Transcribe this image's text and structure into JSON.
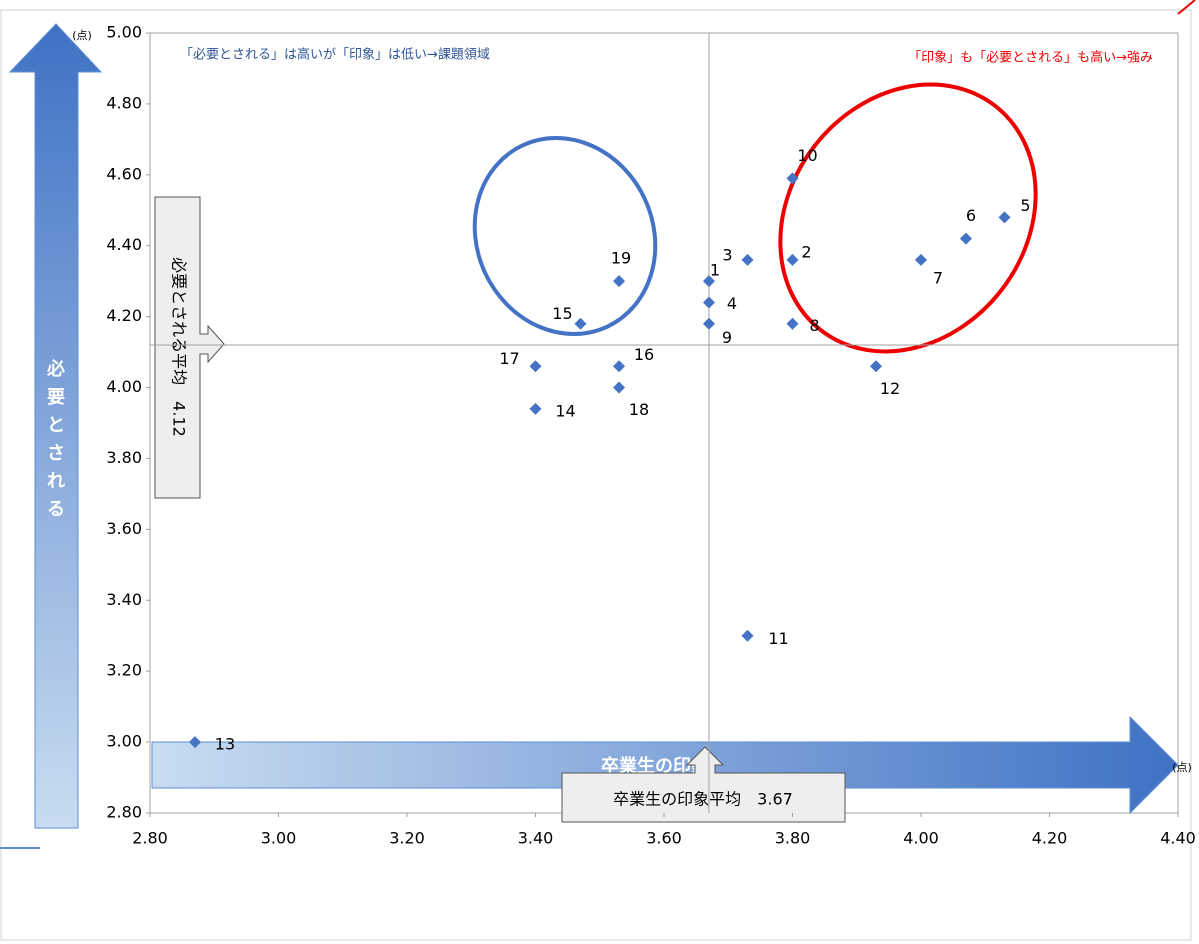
{
  "chart_data": {
    "type": "scatter",
    "x_label": "卒業生の印象",
    "y_label": "必要とされる",
    "x_unit": "(点)",
    "y_unit": "(点)",
    "annotations": [
      "「必要とされる」は高いが「印象」は低い→課題領域",
      "「印象」も「必要とされる」も高い→強み"
    ],
    "x_mean": 3.67,
    "x_mean_label": "卒業生の印象平均　3.67",
    "y_mean": 4.12,
    "y_mean_label": "必要とされる平均　4.12",
    "series": [
      {
        "color": "#4472c4",
        "labels": [
          "1",
          "2",
          "3",
          "4",
          "5",
          "6",
          "7",
          "8",
          "9",
          "10",
          "11",
          "12",
          "13",
          "14",
          "15",
          "16",
          "17",
          "18",
          "19"
        ],
        "x": [
          3.67,
          3.8,
          3.73,
          3.67,
          4.13,
          4.07,
          4.0,
          3.8,
          3.67,
          3.8,
          3.73,
          3.93,
          2.87,
          3.4,
          3.47,
          3.53,
          3.4,
          3.53,
          3.53
        ],
        "values": [
          4.3,
          4.36,
          4.36,
          4.24,
          4.48,
          4.42,
          4.36,
          4.18,
          4.18,
          4.59,
          3.3,
          4.06,
          3.0,
          3.94,
          4.18,
          4.06,
          4.06,
          4.0,
          4.3
        ]
      }
    ],
    "xlim": [
      2.8,
      4.4
    ],
    "ylim": [
      2.8,
      5.0
    ],
    "xticks": [
      {
        "value": 2.8,
        "label": "2.80"
      },
      {
        "value": 3.0,
        "label": "3.00"
      },
      {
        "value": 3.2,
        "label": "3.20"
      },
      {
        "value": 3.4,
        "label": "3.40"
      },
      {
        "value": 3.6,
        "label": "3.60"
      },
      {
        "value": 3.8,
        "label": "3.80"
      },
      {
        "value": 4.0,
        "label": "4.00"
      },
      {
        "value": 4.2,
        "label": "4.20"
      },
      {
        "value": 4.4,
        "label": "4.40"
      }
    ],
    "yticks": [
      {
        "value": 2.8,
        "label": "2.80"
      },
      {
        "value": 3.0,
        "label": "3.00"
      },
      {
        "value": 3.2,
        "label": "3.20"
      },
      {
        "value": 3.4,
        "label": "3.40"
      },
      {
        "value": 3.6,
        "label": "3.60"
      },
      {
        "value": 3.8,
        "label": "3.80"
      },
      {
        "value": 4.0,
        "label": "4.00"
      },
      {
        "value": 4.2,
        "label": "4.20"
      },
      {
        "value": 4.4,
        "label": "4.40"
      },
      {
        "value": 4.6,
        "label": "4.60"
      },
      {
        "value": 4.8,
        "label": "4.80"
      },
      {
        "value": 5.0,
        "label": "5.00"
      }
    ]
  }
}
